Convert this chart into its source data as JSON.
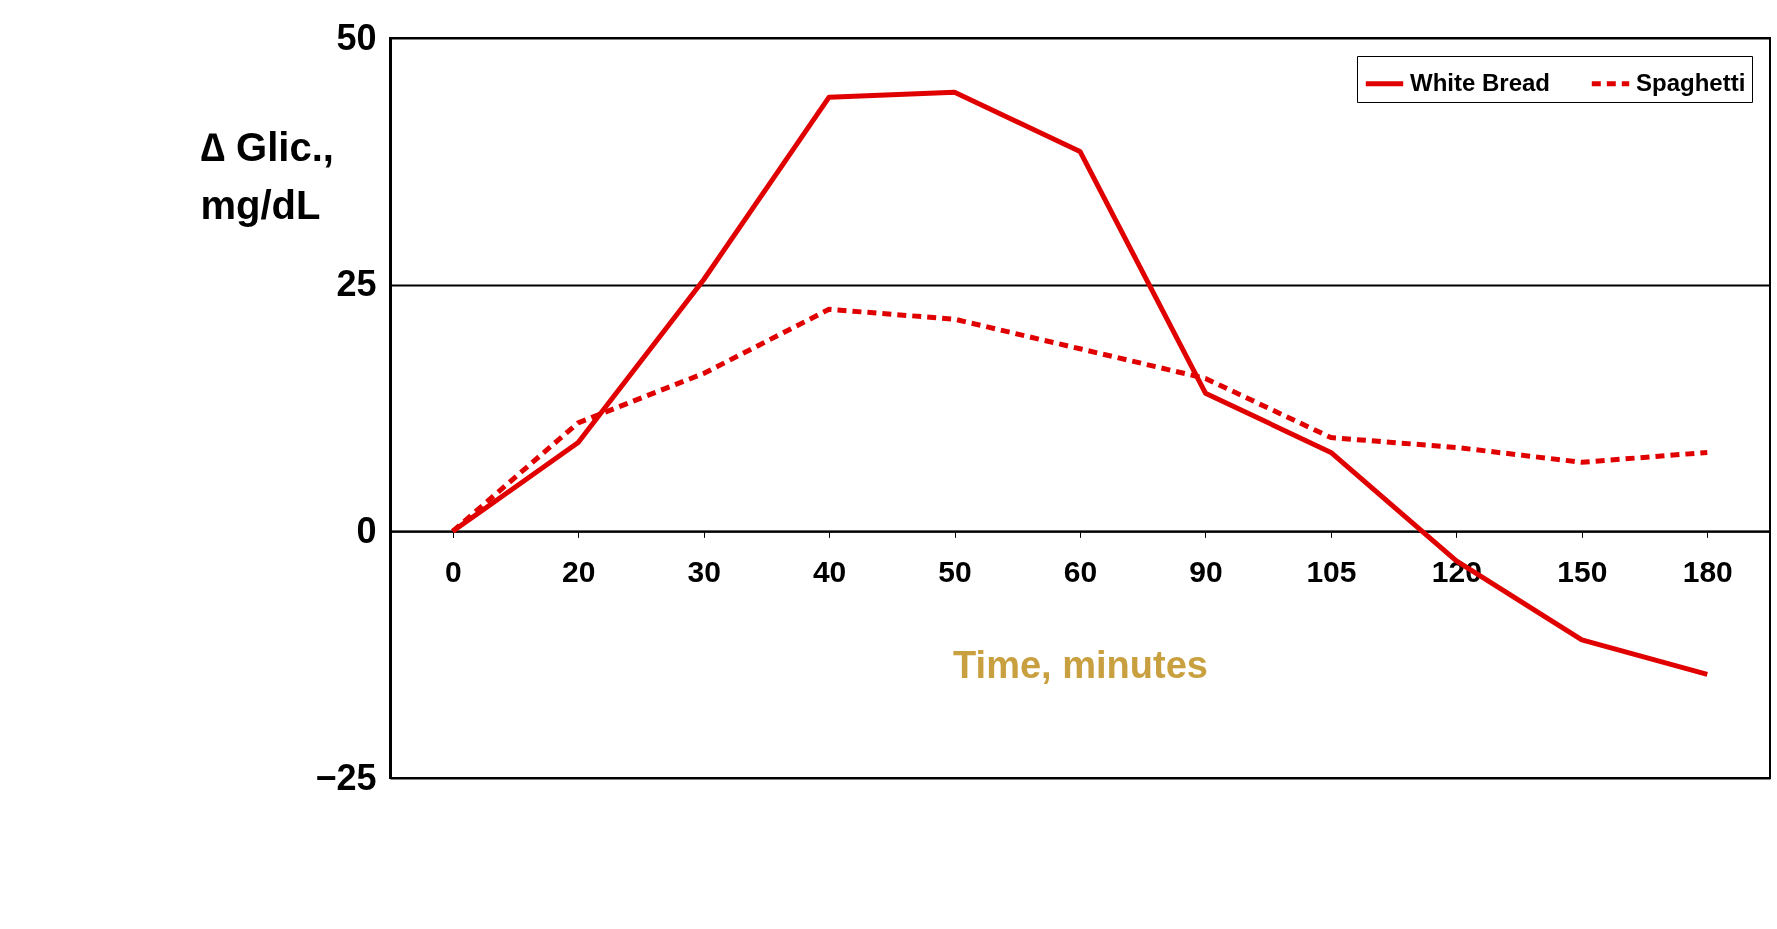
{
  "chart_data": {
    "type": "line",
    "xlabel": "Time, minutes",
    "ylabel": "∆ Glic.,\nmg/dL",
    "categories": [
      "0",
      "20",
      "30",
      "40",
      "50",
      "60",
      "90",
      "105",
      "120",
      "150",
      "180"
    ],
    "series": [
      {
        "name": "White Bread",
        "color": "#e00000",
        "line_style": "solid",
        "values": [
          0,
          9,
          25.5,
          44,
          44.5,
          38.5,
          14,
          8,
          -3,
          -11,
          -14.5
        ]
      },
      {
        "name": "Spaghetti",
        "color": "#e00000",
        "line_style": "dotted",
        "values": [
          0,
          11,
          16,
          22.5,
          21.5,
          18.5,
          15.5,
          9.5,
          8.5,
          7,
          8
        ]
      }
    ],
    "ylim": [
      -25,
      50
    ],
    "yticks": [
      -25,
      0,
      25,
      50
    ],
    "grid": "y",
    "legend": "top right"
  }
}
